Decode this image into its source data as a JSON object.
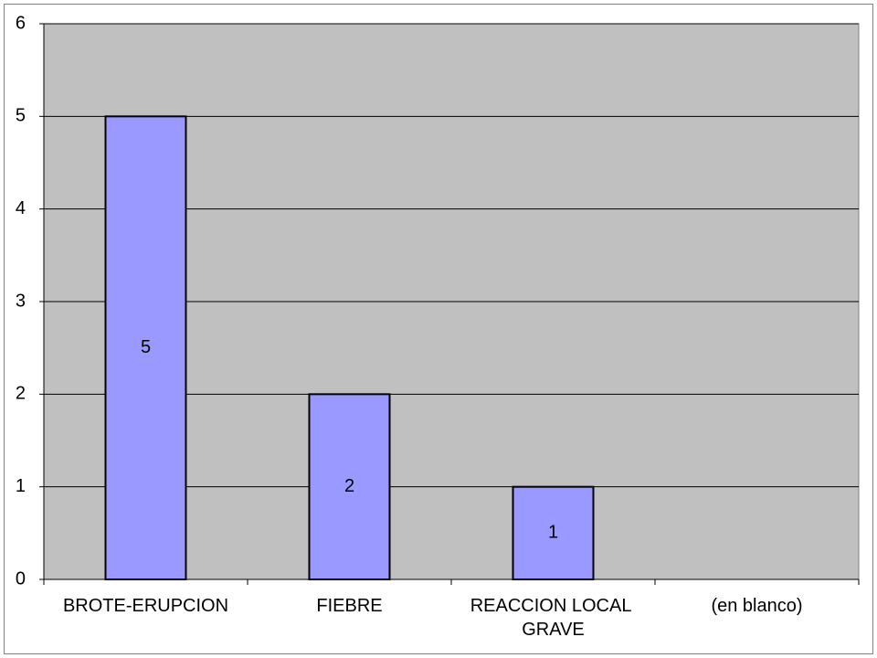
{
  "chart_data": {
    "type": "bar",
    "categories": [
      "BROTE-ERUPCION",
      "FIEBRE",
      "REACCION LOCAL GRAVE",
      "(en blanco)"
    ],
    "values": [
      5,
      2,
      1,
      null
    ],
    "color": "#9999ff",
    "ylim": [
      0,
      6
    ],
    "yticks": [
      0,
      1,
      2,
      3,
      4,
      5,
      6
    ],
    "grid": true
  }
}
